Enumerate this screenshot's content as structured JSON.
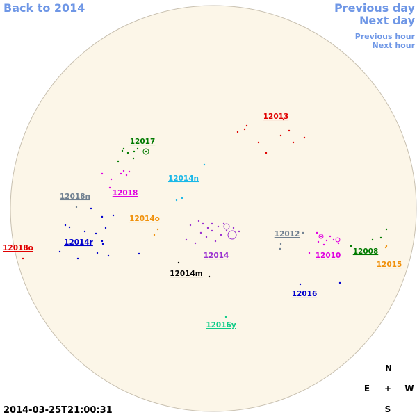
{
  "navigation": {
    "back": "Back to 2014",
    "previous_day": "Previous day",
    "next_day": "Next day",
    "previous_hour": "Previous hour",
    "next_hour": "Next hour"
  },
  "regions": [
    {
      "label": "12013",
      "color": "#e00000"
    },
    {
      "label": "12017",
      "color": "#007a00"
    },
    {
      "label": "12014n",
      "color": "#1ab8e8"
    },
    {
      "label": "12018n",
      "color": "#708090"
    },
    {
      "label": "12018",
      "color": "#e000e0"
    },
    {
      "label": "12014o",
      "color": "#f0900a"
    },
    {
      "label": "12018o",
      "color": "#e00000"
    },
    {
      "label": "12014r",
      "color": "#0000cc"
    },
    {
      "label": "12012",
      "color": "#708090"
    },
    {
      "label": "12014",
      "color": "#9a30d0"
    },
    {
      "label": "12010",
      "color": "#e000e0"
    },
    {
      "label": "12008",
      "color": "#007a00"
    },
    {
      "label": "12015",
      "color": "#f0900a"
    },
    {
      "label": "12014m",
      "color": "#000000"
    },
    {
      "label": "12016",
      "color": "#0000cc"
    },
    {
      "label": "12016y",
      "color": "#10cc88"
    }
  ],
  "compass": {
    "north": "N",
    "east": "E",
    "center": "+",
    "west": "W",
    "south": "S"
  },
  "timestamp": "2014-03-25T21:00:31"
}
